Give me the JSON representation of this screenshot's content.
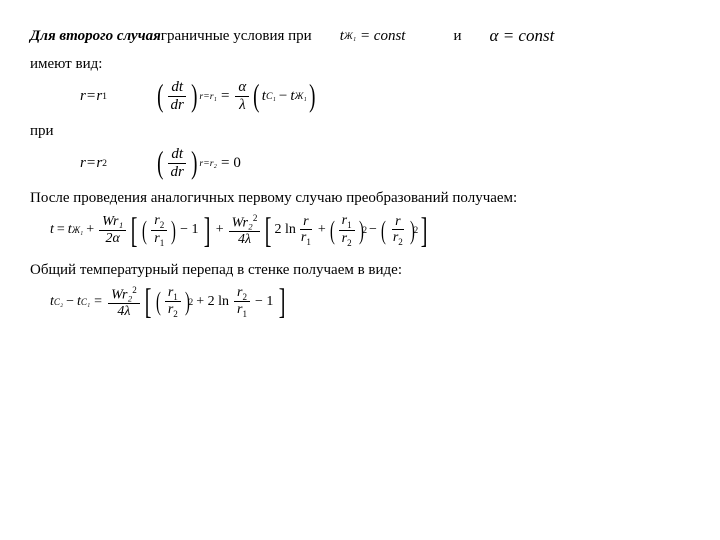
{
  "colors": {
    "text": "#000000",
    "background": "#ffffff"
  },
  "typography": {
    "base_fontsize_pt": 15,
    "formula_long_fontsize_pt": 14,
    "family": "Times New Roman"
  },
  "line1": {
    "part_bolditalic": "Для второго случая",
    "part_plain": " граничные условия при",
    "eq1_lhs": "t",
    "eq1_sub": "Ж₁",
    "eq1_rhs": "= const",
    "conj": "и",
    "eq2": "α = const"
  },
  "text": {
    "imeyut_vid": "имеют вид:",
    "pri": "при",
    "posle": "После проведения аналогичных первому случаю преобразований получаем:",
    "obshchiy": "Общий температурный перепад в стенке получаем в виде:"
  },
  "bc1": {
    "left": {
      "r": "r",
      "eq": "=",
      "r1": "r",
      "r1sub": "1"
    },
    "deriv_num": "dt",
    "deriv_den": "dr",
    "deriv_sub": "r=r₁",
    "eq": "=",
    "frac_num": "α",
    "frac_den": "λ",
    "paren_t1": "t",
    "paren_t1_sub": "C₁",
    "minus": "−",
    "paren_t2": "t",
    "paren_t2_sub": "Ж₁"
  },
  "bc2": {
    "left": {
      "r": "r",
      "eq": "=",
      "r2": "r",
      "r2sub": "2"
    },
    "deriv_num": "dt",
    "deriv_den": "dr",
    "deriv_sub": "r=r₂",
    "eq": "=",
    "zero": "0"
  },
  "eqT": {
    "t": "t",
    "eq": "=",
    "tzh": "t",
    "tzh_sub": "Ж₁",
    "plus1": "+",
    "term1_num": "Wr₁",
    "term1_den": "2α",
    "br1_inner_num": "r",
    "br1_inner_num_sub": "2",
    "br1_inner_den": "r",
    "br1_inner_den_sub": "1",
    "minus1": "− 1",
    "plus2": "+",
    "term2_num": "Wr₂",
    "term2_num_sup": "2",
    "term2_den": "4λ",
    "twoln": "2 ln",
    "ln_num": "r",
    "ln_den": "r",
    "ln_den_sub": "1",
    "plus3": "+",
    "p1_num": "r",
    "p1_num_sub": "1",
    "p1_den": "r",
    "p1_den_sub": "2",
    "p1_sup": "2",
    "minus2": "−",
    "p2_num": "r",
    "p2_den": "r",
    "p2_den_sub": "2",
    "p2_sup": "2"
  },
  "eqD": {
    "tc2": "t",
    "tc2_sub": "C₂",
    "minus": "−",
    "tc1": "t",
    "tc1_sub": "C₁",
    "eq": "=",
    "frac_num": "Wr₂",
    "frac_num_sup": "2",
    "frac_den": "4λ",
    "inner_num": "r",
    "inner_num_sub": "1",
    "inner_den": "r",
    "inner_den_sub": "2",
    "inner_sup": "2",
    "plus": "+ 2 ln",
    "ln_num": "r",
    "ln_num_sub": "2",
    "ln_den": "r",
    "ln_den_sub": "1",
    "minus1": "− 1"
  }
}
